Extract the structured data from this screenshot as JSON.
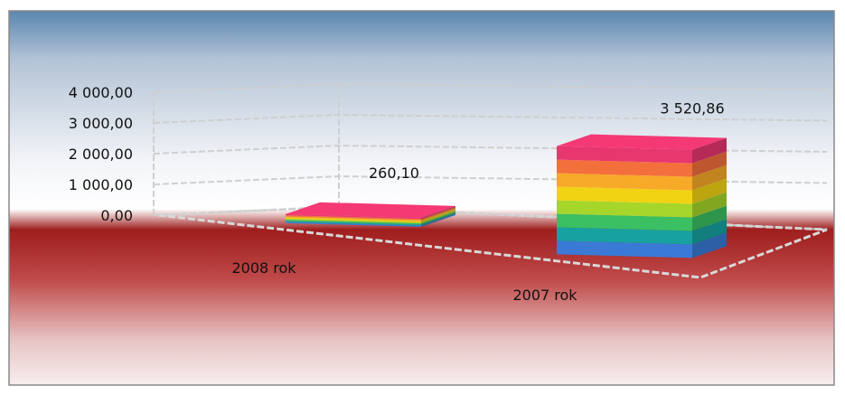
{
  "chart_data": {
    "type": "bar",
    "categories": [
      "2008 rok",
      "2007 rok"
    ],
    "values": [
      260.1,
      3520.86
    ],
    "value_labels": [
      "260,10",
      "3 520,86"
    ],
    "y_ticks": [
      0,
      1000,
      2000,
      3000,
      4000
    ],
    "y_tick_labels": [
      "0,00",
      "1 000,00",
      "2 000,00",
      "3 000,00",
      "4 000,00"
    ],
    "ylim": [
      0,
      4000
    ],
    "title": "",
    "xlabel": "",
    "ylabel": "",
    "grid": true,
    "legend": "none",
    "style": "3d-column",
    "bar_colors": [
      "#3a7ad6",
      "#17a2a0",
      "#3bbf63",
      "#a6d62a",
      "#f2d313",
      "#f7a928",
      "#f36f3c",
      "#e8366f"
    ],
    "background": {
      "top": "#5b86b0",
      "middle": "#ffffff",
      "bottom": "#9f1d1d"
    }
  }
}
